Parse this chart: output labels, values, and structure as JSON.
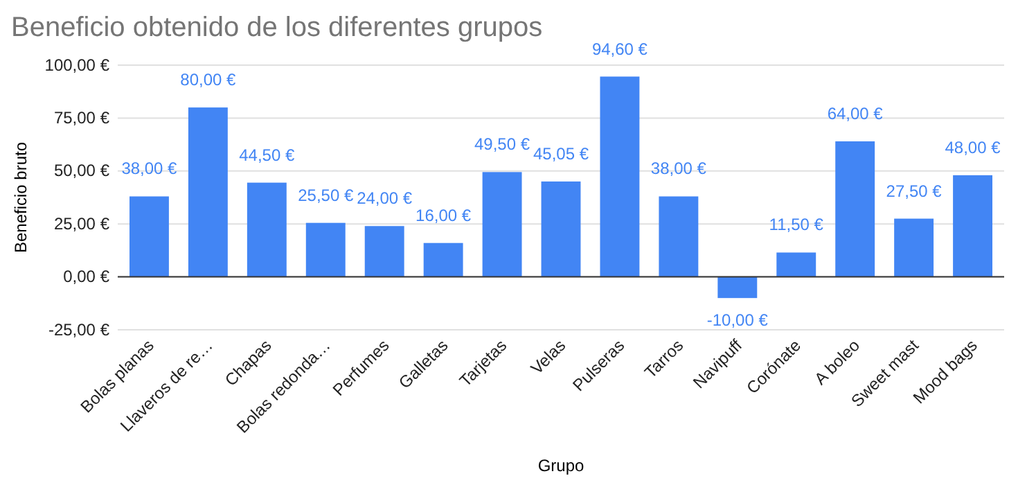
{
  "chart_data": {
    "type": "bar",
    "title": "Beneficio obtenido de los diferentes grupos",
    "xlabel": "Grupo",
    "ylabel": "Beneficio bruto",
    "categories": [
      "Bolas planas",
      "Llaveros de re…",
      "Chapas",
      "Bolas redonda…",
      "Perfumes",
      "Galletas",
      "Tarjetas",
      "Velas",
      "Pulseras",
      "Tarros",
      "Navipuff",
      "Corónate",
      "A boleo",
      "Sweet mast",
      "Mood bags"
    ],
    "values": [
      38,
      80,
      44.5,
      25.5,
      24,
      16,
      49.5,
      45.05,
      94.6,
      38,
      -10,
      11.5,
      64,
      27.5,
      48
    ],
    "value_labels": [
      "38,00 €",
      "80,00 €",
      "44,50 €",
      "25,50 €",
      "24,00 €",
      "16,00 €",
      "49,50 €",
      "45,05 €",
      "94,60 €",
      "38,00 €",
      "-10,00 €",
      "11,50 €",
      "64,00 €",
      "27,50 €",
      "48,00 €"
    ],
    "color": "#4285f4",
    "ylim": [
      -25,
      100
    ],
    "yticks": [
      {
        "value": -25,
        "label": "-25,00 €"
      },
      {
        "value": 0,
        "label": "0,00 €"
      },
      {
        "value": 25,
        "label": "25,00 €"
      },
      {
        "value": 50,
        "label": "50,00 €"
      },
      {
        "value": 75,
        "label": "75,00 €"
      },
      {
        "value": 100,
        "label": "100,00 €"
      }
    ],
    "grid": "y"
  }
}
